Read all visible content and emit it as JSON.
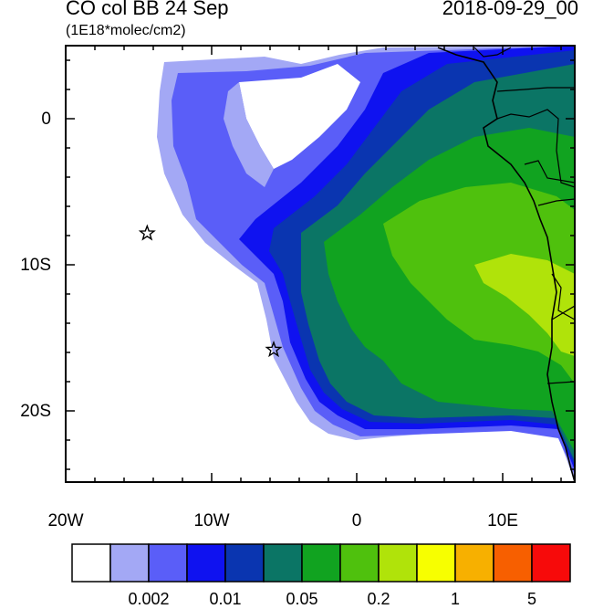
{
  "title": {
    "left": "CO col BB 24 Sep",
    "right": "2018-09-29_00",
    "units": "(1E18*molec/cm2)"
  },
  "map": {
    "lon_labels": [
      "20W",
      "10W",
      "0",
      "10E"
    ],
    "lat_labels": [
      "0",
      "10S",
      "20S"
    ],
    "lon_range": [
      -20,
      15
    ],
    "lat_range": [
      -25,
      5
    ],
    "markers": [
      {
        "type": "star",
        "lon": -14.4,
        "lat": -7.9
      },
      {
        "type": "star",
        "lon": -5.7,
        "lat": -15.9
      }
    ]
  },
  "colorbar": {
    "colors": [
      "#ffffff",
      "#a3a8f5",
      "#5a5ef8",
      "#0f12f0",
      "#0a35b0",
      "#0b7565",
      "#11a320",
      "#4fc10d",
      "#b0e30a",
      "#f7ff00",
      "#f7b000",
      "#f75f00",
      "#f70a0a"
    ],
    "labels": [
      "0.002",
      "0.01",
      "0.05",
      "0.2",
      "1",
      "5"
    ]
  }
}
